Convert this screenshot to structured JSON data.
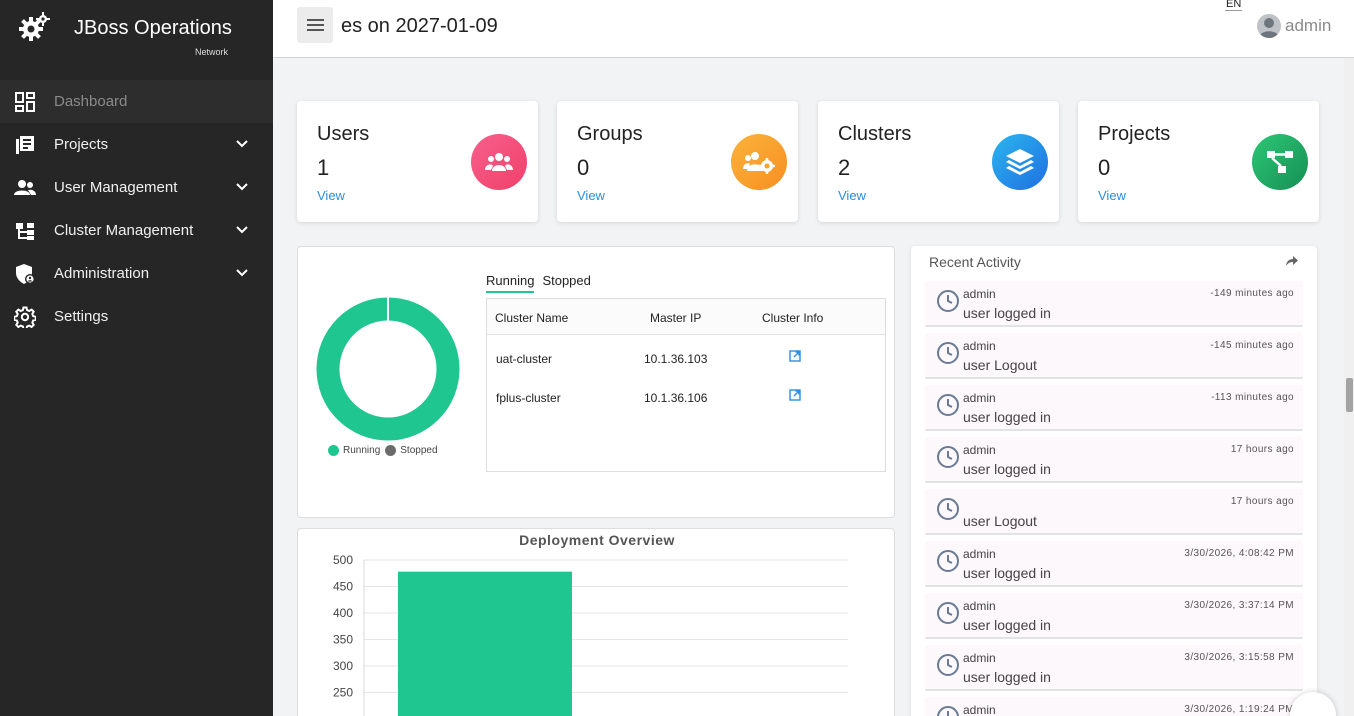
{
  "brand": {
    "title": "JBoss Operations",
    "subtitle": "Network"
  },
  "sidebar": {
    "items": [
      {
        "label": "Dashboard",
        "icon": "dashboard-icon",
        "active": true
      },
      {
        "label": "Projects",
        "icon": "projects-icon",
        "expandable": true
      },
      {
        "label": "User Management",
        "icon": "users-icon",
        "expandable": true
      },
      {
        "label": "Cluster Management",
        "icon": "cluster-icon",
        "expandable": true
      },
      {
        "label": "Administration",
        "icon": "admin-shield-icon",
        "expandable": true
      },
      {
        "label": "Settings",
        "icon": "gear-icon"
      }
    ]
  },
  "header": {
    "title": "es on 2027-01-09",
    "language": "EN",
    "user": "admin"
  },
  "cards": [
    {
      "title": "Users",
      "value": "1",
      "link": "View",
      "icon": "users-group-icon",
      "color": "#f2537e"
    },
    {
      "title": "Groups",
      "value": "0",
      "link": "View",
      "icon": "groups-gear-icon",
      "color": "#f8a22c"
    },
    {
      "title": "Clusters",
      "value": "2",
      "link": "View",
      "icon": "layers-icon",
      "color": "#1f8be6"
    },
    {
      "title": "Projects",
      "value": "0",
      "link": "View",
      "icon": "project-tree-icon",
      "color": "#1fae66"
    }
  ],
  "clusters": {
    "legend": [
      "Running",
      "Stopped"
    ],
    "running_color": "#20c68f",
    "stopped_color": "#6b6b6b",
    "tabs": [
      "Running",
      "Stopped"
    ],
    "columns": [
      "Cluster Name",
      "Master IP",
      "Cluster Info"
    ],
    "rows": [
      {
        "name": "uat-cluster",
        "ip": "10.1.36.103",
        "info_icon": "external-link-icon"
      },
      {
        "name": "fplus-cluster",
        "ip": "10.1.36.106",
        "info_icon": "external-link-icon"
      }
    ]
  },
  "chart_data": {
    "type": "bar",
    "title": "Deployment Overview",
    "categories": [
      ""
    ],
    "values": [
      478
    ],
    "y_ticks": [
      250,
      300,
      350,
      400,
      450,
      500
    ],
    "ylim_visible": [
      230,
      500
    ],
    "color": "#20c68f",
    "grid": true
  },
  "recent": {
    "title": "Recent Activity",
    "items": [
      {
        "user": "admin",
        "action": "user logged in",
        "time": "-149 minutes ago"
      },
      {
        "user": "admin",
        "action": "user Logout",
        "time": "-145 minutes ago"
      },
      {
        "user": "admin",
        "action": "user logged in",
        "time": "-113 minutes ago"
      },
      {
        "user": "admin",
        "action": "user logged in",
        "time": "17 hours ago"
      },
      {
        "user": "",
        "action": "user Logout",
        "time": "17 hours ago"
      },
      {
        "user": "admin",
        "action": "user logged in",
        "time": "3/30/2026, 4:08:42 PM"
      },
      {
        "user": "admin",
        "action": "user logged in",
        "time": "3/30/2026, 3:37:14 PM"
      },
      {
        "user": "admin",
        "action": "user logged in",
        "time": "3/30/2026, 3:15:58 PM"
      },
      {
        "user": "admin",
        "action": "",
        "time": "3/30/2026, 1:19:24 PM"
      }
    ]
  }
}
